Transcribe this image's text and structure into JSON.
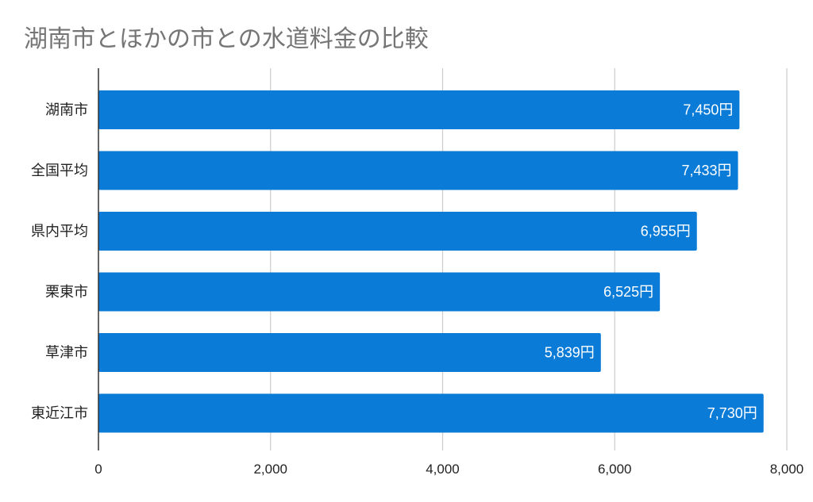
{
  "chart_data": {
    "type": "bar",
    "orientation": "horizontal",
    "title": "湖南市とほかの市との水道料金の比較",
    "categories": [
      "湖南市",
      "全国平均",
      "県内平均",
      "栗東市",
      "草津市",
      "東近江市"
    ],
    "values": [
      7450,
      7433,
      6955,
      6525,
      5839,
      7730
    ],
    "data_labels": [
      "7,450円",
      "7,433円",
      "6,955円",
      "6,525円",
      "5,839円",
      "7,730円"
    ],
    "xticks": [
      "0",
      "2,000",
      "4,000",
      "6,000",
      "8,000"
    ],
    "xtick_values": [
      0,
      2000,
      4000,
      6000,
      8000
    ],
    "xlim": [
      0,
      8000
    ],
    "grid": true,
    "legend": "none",
    "colors": {
      "bar": "#0a7bd6",
      "grid": "#cccccc",
      "axis": "#333333",
      "title": "#757575"
    }
  }
}
